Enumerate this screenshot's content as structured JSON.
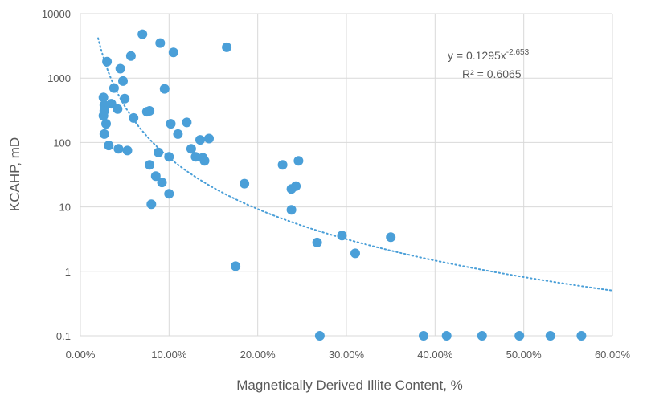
{
  "chart_data": {
    "type": "scatter",
    "xlabel": "Magnetically Derived Illite Content, %",
    "ylabel": "KCAHP, mD",
    "xlim": [
      0,
      0.6
    ],
    "ylim": [
      0.1,
      10000
    ],
    "yscale": "log",
    "grid": true,
    "color": "#4a9fd8",
    "x_ticks": [
      "0.00%",
      "10.00%",
      "20.00%",
      "30.00%",
      "40.00%",
      "50.00%",
      "60.00%"
    ],
    "y_ticks": [
      "0.1",
      "1",
      "10",
      "100",
      "1000",
      "10000"
    ],
    "x": [
      0.03,
      0.026,
      0.027,
      0.027,
      0.026,
      0.027,
      0.029,
      0.032,
      0.035,
      0.038,
      0.042,
      0.045,
      0.043,
      0.048,
      0.05,
      0.053,
      0.057,
      0.06,
      0.07,
      0.075,
      0.078,
      0.078,
      0.08,
      0.085,
      0.088,
      0.09,
      0.092,
      0.095,
      0.1,
      0.1,
      0.102,
      0.105,
      0.11,
      0.12,
      0.125,
      0.13,
      0.135,
      0.138,
      0.14,
      0.145,
      0.165,
      0.175,
      0.185,
      0.228,
      0.238,
      0.238,
      0.243,
      0.246,
      0.267,
      0.27,
      0.295,
      0.31,
      0.35,
      0.387,
      0.413,
      0.453,
      0.495,
      0.53,
      0.565
    ],
    "y": [
      1800,
      500,
      380,
      310,
      260,
      135,
      195,
      90,
      400,
      700,
      330,
      1400,
      80,
      900,
      480,
      75,
      2200,
      240,
      4800,
      300,
      310,
      45,
      11,
      30,
      70,
      3500,
      24,
      680,
      16,
      60,
      195,
      2500,
      135,
      205,
      80,
      60,
      110,
      58,
      52,
      115,
      3000,
      1.2,
      23,
      45,
      19,
      9,
      21,
      52,
      2.8,
      0.1,
      3.6,
      1.9,
      3.4,
      0.1,
      0.1,
      0.1,
      0.1,
      0.1,
      0.1
    ],
    "trendline": {
      "type": "power",
      "coefficient": 0.1295,
      "exponent": -2.653,
      "equation_prefix": "y = 0.1295x",
      "equation_exponent": "-2.653",
      "r2_text": "R² = 0.6065"
    }
  }
}
